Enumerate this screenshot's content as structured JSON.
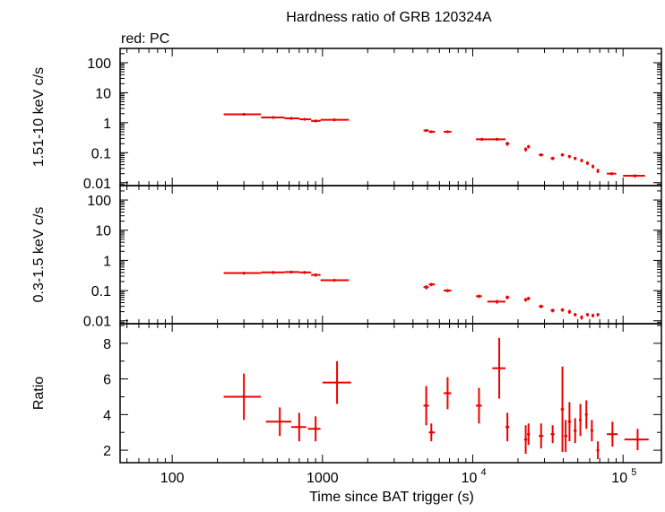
{
  "chart_data": {
    "type": "scatter",
    "title": "Hardness ratio of GRB 120324A",
    "subtitle": "red: PC",
    "xlabel": "Time since BAT trigger (s)",
    "x_scale": "log",
    "x_range": [
      45,
      180000
    ],
    "x_ticks": [
      {
        "value": 100,
        "label": "100"
      },
      {
        "value": 1000,
        "label": "1000"
      },
      {
        "value": 10000,
        "label": "10",
        "sup": "4"
      },
      {
        "value": 100000,
        "label": "10",
        "sup": "5"
      }
    ],
    "series_color": "#ee0000",
    "panels": [
      {
        "id": "hard",
        "ylabel": "1.51-10 keV c/s",
        "y_scale": "log",
        "y_range": [
          0.008,
          300
        ],
        "y_ticks": [
          {
            "value": 100,
            "label": "100"
          },
          {
            "value": 10,
            "label": "10"
          },
          {
            "value": 1,
            "label": "1"
          },
          {
            "value": 0.1,
            "label": "0.1"
          },
          {
            "value": 0.01,
            "label": "0.01"
          }
        ],
        "points": [
          {
            "x": 300,
            "xlo": 220,
            "xhi": 390,
            "y": 1.9,
            "ylo": 1.75,
            "yhi": 2.05
          },
          {
            "x": 470,
            "xlo": 390,
            "xhi": 560,
            "y": 1.5,
            "ylo": 1.38,
            "yhi": 1.62
          },
          {
            "x": 620,
            "xlo": 560,
            "xhi": 700,
            "y": 1.4,
            "ylo": 1.28,
            "yhi": 1.52
          },
          {
            "x": 760,
            "xlo": 700,
            "xhi": 840,
            "y": 1.3,
            "ylo": 1.18,
            "yhi": 1.42
          },
          {
            "x": 900,
            "xlo": 840,
            "xhi": 970,
            "y": 1.15,
            "ylo": 1.03,
            "yhi": 1.27
          },
          {
            "x": 1200,
            "xlo": 970,
            "xhi": 1500,
            "y": 1.25,
            "ylo": 1.15,
            "yhi": 1.35
          },
          {
            "x": 4900,
            "xlo": 4700,
            "xhi": 5100,
            "y": 0.55,
            "ylo": 0.5,
            "yhi": 0.6
          },
          {
            "x": 5300,
            "xlo": 5100,
            "xhi": 5600,
            "y": 0.5,
            "ylo": 0.45,
            "yhi": 0.55
          },
          {
            "x": 6800,
            "xlo": 6400,
            "xhi": 7200,
            "y": 0.5,
            "ylo": 0.45,
            "yhi": 0.55
          },
          {
            "x": 11500,
            "xlo": 10500,
            "xhi": 12500,
            "y": 0.28,
            "ylo": 0.25,
            "yhi": 0.31
          },
          {
            "x": 14500,
            "xlo": 12500,
            "xhi": 16500,
            "y": 0.28,
            "ylo": 0.25,
            "yhi": 0.31
          },
          {
            "x": 17000,
            "xlo": 16500,
            "xhi": 17500,
            "y": 0.2,
            "ylo": 0.17,
            "yhi": 0.23
          },
          {
            "x": 22500,
            "xlo": 22000,
            "xhi": 23000,
            "y": 0.13,
            "ylo": 0.11,
            "yhi": 0.15
          },
          {
            "x": 23500,
            "xlo": 23000,
            "xhi": 24000,
            "y": 0.16,
            "ylo": 0.14,
            "yhi": 0.18
          },
          {
            "x": 28500,
            "xlo": 27500,
            "xhi": 29500,
            "y": 0.085,
            "ylo": 0.075,
            "yhi": 0.095
          },
          {
            "x": 34000,
            "xlo": 33000,
            "xhi": 35000,
            "y": 0.065,
            "ylo": 0.057,
            "yhi": 0.073
          },
          {
            "x": 39500,
            "xlo": 38500,
            "xhi": 40500,
            "y": 0.085,
            "ylo": 0.075,
            "yhi": 0.095
          },
          {
            "x": 44000,
            "xlo": 43000,
            "xhi": 45000,
            "y": 0.075,
            "ylo": 0.066,
            "yhi": 0.084
          },
          {
            "x": 48000,
            "xlo": 47000,
            "xhi": 49000,
            "y": 0.065,
            "ylo": 0.057,
            "yhi": 0.073
          },
          {
            "x": 53000,
            "xlo": 52000,
            "xhi": 54000,
            "y": 0.055,
            "ylo": 0.048,
            "yhi": 0.062
          },
          {
            "x": 58000,
            "xlo": 57000,
            "xhi": 59000,
            "y": 0.045,
            "ylo": 0.039,
            "yhi": 0.051
          },
          {
            "x": 63000,
            "xlo": 62000,
            "xhi": 64000,
            "y": 0.035,
            "ylo": 0.03,
            "yhi": 0.04
          },
          {
            "x": 68000,
            "xlo": 67000,
            "xhi": 69000,
            "y": 0.025,
            "ylo": 0.021,
            "yhi": 0.029
          },
          {
            "x": 84000,
            "xlo": 78000,
            "xhi": 90000,
            "y": 0.02,
            "ylo": 0.018,
            "yhi": 0.022
          },
          {
            "x": 120000,
            "xlo": 100000,
            "xhi": 140000,
            "y": 0.017,
            "ylo": 0.015,
            "yhi": 0.019
          }
        ]
      },
      {
        "id": "soft",
        "ylabel": "0.3-1.5 keV c/s",
        "y_scale": "log",
        "y_range": [
          0.008,
          300
        ],
        "y_ticks": [
          {
            "value": 100,
            "label": "100"
          },
          {
            "value": 10,
            "label": "10"
          },
          {
            "value": 1,
            "label": "1"
          },
          {
            "value": 0.1,
            "label": "0.1"
          },
          {
            "value": 0.01,
            "label": "0.01"
          }
        ],
        "points": [
          {
            "x": 300,
            "xlo": 220,
            "xhi": 390,
            "y": 0.38,
            "ylo": 0.34,
            "yhi": 0.42
          },
          {
            "x": 470,
            "xlo": 390,
            "xhi": 560,
            "y": 0.4,
            "ylo": 0.36,
            "yhi": 0.44
          },
          {
            "x": 620,
            "xlo": 560,
            "xhi": 700,
            "y": 0.41,
            "ylo": 0.37,
            "yhi": 0.45
          },
          {
            "x": 760,
            "xlo": 700,
            "xhi": 840,
            "y": 0.4,
            "ylo": 0.36,
            "yhi": 0.44
          },
          {
            "x": 900,
            "xlo": 840,
            "xhi": 970,
            "y": 0.33,
            "ylo": 0.29,
            "yhi": 0.37
          },
          {
            "x": 1200,
            "xlo": 970,
            "xhi": 1500,
            "y": 0.22,
            "ylo": 0.2,
            "yhi": 0.24
          },
          {
            "x": 4900,
            "xlo": 4700,
            "xhi": 5100,
            "y": 0.13,
            "ylo": 0.11,
            "yhi": 0.15
          },
          {
            "x": 5300,
            "xlo": 5100,
            "xhi": 5600,
            "y": 0.16,
            "ylo": 0.14,
            "yhi": 0.18
          },
          {
            "x": 6800,
            "xlo": 6400,
            "xhi": 7200,
            "y": 0.1,
            "ylo": 0.088,
            "yhi": 0.112
          },
          {
            "x": 11000,
            "xlo": 10500,
            "xhi": 11500,
            "y": 0.065,
            "ylo": 0.057,
            "yhi": 0.073
          },
          {
            "x": 14500,
            "xlo": 12500,
            "xhi": 16500,
            "y": 0.043,
            "ylo": 0.037,
            "yhi": 0.049
          },
          {
            "x": 17000,
            "xlo": 16500,
            "xhi": 17500,
            "y": 0.06,
            "ylo": 0.052,
            "yhi": 0.068
          },
          {
            "x": 22500,
            "xlo": 22000,
            "xhi": 23000,
            "y": 0.05,
            "ylo": 0.043,
            "yhi": 0.057
          },
          {
            "x": 23500,
            "xlo": 23000,
            "xhi": 24000,
            "y": 0.055,
            "ylo": 0.048,
            "yhi": 0.062
          },
          {
            "x": 28500,
            "xlo": 27500,
            "xhi": 29500,
            "y": 0.03,
            "ylo": 0.026,
            "yhi": 0.034
          },
          {
            "x": 34000,
            "xlo": 33000,
            "xhi": 35000,
            "y": 0.022,
            "ylo": 0.019,
            "yhi": 0.025
          },
          {
            "x": 39500,
            "xlo": 38500,
            "xhi": 40500,
            "y": 0.023,
            "ylo": 0.02,
            "yhi": 0.026
          },
          {
            "x": 44000,
            "xlo": 43000,
            "xhi": 45000,
            "y": 0.02,
            "ylo": 0.017,
            "yhi": 0.023
          },
          {
            "x": 48000,
            "xlo": 47000,
            "xhi": 49000,
            "y": 0.016,
            "ylo": 0.014,
            "yhi": 0.018
          },
          {
            "x": 53000,
            "xlo": 52000,
            "xhi": 54000,
            "y": 0.013,
            "ylo": 0.011,
            "yhi": 0.015
          },
          {
            "x": 58000,
            "xlo": 57000,
            "xhi": 59000,
            "y": 0.016,
            "ylo": 0.014,
            "yhi": 0.018
          },
          {
            "x": 63000,
            "xlo": 62000,
            "xhi": 64000,
            "y": 0.015,
            "ylo": 0.013,
            "yhi": 0.017
          },
          {
            "x": 68000,
            "xlo": 67000,
            "xhi": 69000,
            "y": 0.016,
            "ylo": 0.014,
            "yhi": 0.018
          }
        ]
      },
      {
        "id": "ratio",
        "ylabel": "Ratio",
        "y_scale": "linear",
        "y_range": [
          1.3,
          9.1
        ],
        "y_ticks": [
          {
            "value": 2,
            "label": "2"
          },
          {
            "value": 4,
            "label": "4"
          },
          {
            "value": 6,
            "label": "6"
          },
          {
            "value": 8,
            "label": "8"
          }
        ],
        "points": [
          {
            "x": 300,
            "xlo": 220,
            "xhi": 390,
            "y": 5.0,
            "ylo": 3.7,
            "yhi": 6.3
          },
          {
            "x": 520,
            "xlo": 420,
            "xhi": 620,
            "y": 3.6,
            "ylo": 2.8,
            "yhi": 4.4
          },
          {
            "x": 700,
            "xlo": 620,
            "xhi": 780,
            "y": 3.3,
            "ylo": 2.5,
            "yhi": 4.1
          },
          {
            "x": 900,
            "xlo": 800,
            "xhi": 970,
            "y": 3.2,
            "ylo": 2.5,
            "yhi": 3.9
          },
          {
            "x": 1250,
            "xlo": 1000,
            "xhi": 1550,
            "y": 5.8,
            "ylo": 4.6,
            "yhi": 7.0
          },
          {
            "x": 4900,
            "xlo": 4700,
            "xhi": 5100,
            "y": 4.5,
            "ylo": 3.4,
            "yhi": 5.6
          },
          {
            "x": 5300,
            "xlo": 5100,
            "xhi": 5600,
            "y": 3.0,
            "ylo": 2.5,
            "yhi": 3.5
          },
          {
            "x": 6800,
            "xlo": 6400,
            "xhi": 7200,
            "y": 5.2,
            "ylo": 4.3,
            "yhi": 6.1
          },
          {
            "x": 11000,
            "xlo": 10500,
            "xhi": 11500,
            "y": 4.5,
            "ylo": 3.5,
            "yhi": 5.5
          },
          {
            "x": 15000,
            "xlo": 13500,
            "xhi": 16500,
            "y": 6.6,
            "ylo": 4.9,
            "yhi": 8.3
          },
          {
            "x": 17000,
            "xlo": 16500,
            "xhi": 17500,
            "y": 3.3,
            "ylo": 2.5,
            "yhi": 4.1
          },
          {
            "x": 22500,
            "xlo": 22000,
            "xhi": 23000,
            "y": 2.6,
            "ylo": 1.8,
            "yhi": 3.4
          },
          {
            "x": 23500,
            "xlo": 23000,
            "xhi": 24000,
            "y": 2.9,
            "ylo": 2.3,
            "yhi": 3.5
          },
          {
            "x": 28500,
            "xlo": 27500,
            "xhi": 29500,
            "y": 2.8,
            "ylo": 2.1,
            "yhi": 3.5
          },
          {
            "x": 34000,
            "xlo": 33000,
            "xhi": 35000,
            "y": 2.9,
            "ylo": 2.4,
            "yhi": 3.4
          },
          {
            "x": 39500,
            "xlo": 38500,
            "xhi": 40500,
            "y": 4.3,
            "ylo": 1.9,
            "yhi": 6.7
          },
          {
            "x": 41500,
            "xlo": 40500,
            "xhi": 42500,
            "y": 2.8,
            "ylo": 1.9,
            "yhi": 3.7
          },
          {
            "x": 44000,
            "xlo": 43000,
            "xhi": 45000,
            "y": 3.6,
            "ylo": 2.5,
            "yhi": 4.7
          },
          {
            "x": 48000,
            "xlo": 47000,
            "xhi": 49000,
            "y": 3.1,
            "ylo": 2.4,
            "yhi": 3.8
          },
          {
            "x": 52000,
            "xlo": 51000,
            "xhi": 53000,
            "y": 3.7,
            "ylo": 2.8,
            "yhi": 4.6
          },
          {
            "x": 57000,
            "xlo": 56000,
            "xhi": 58000,
            "y": 4.0,
            "ylo": 3.2,
            "yhi": 4.8
          },
          {
            "x": 62000,
            "xlo": 61000,
            "xhi": 63000,
            "y": 3.1,
            "ylo": 2.5,
            "yhi": 3.7
          },
          {
            "x": 68000,
            "xlo": 67000,
            "xhi": 69000,
            "y": 2.0,
            "ylo": 1.5,
            "yhi": 2.5
          },
          {
            "x": 85000,
            "xlo": 78000,
            "xhi": 92000,
            "y": 2.9,
            "ylo": 2.2,
            "yhi": 3.6
          },
          {
            "x": 125000,
            "xlo": 102000,
            "xhi": 148000,
            "y": 2.6,
            "ylo": 2.0,
            "yhi": 3.2
          }
        ]
      }
    ]
  }
}
